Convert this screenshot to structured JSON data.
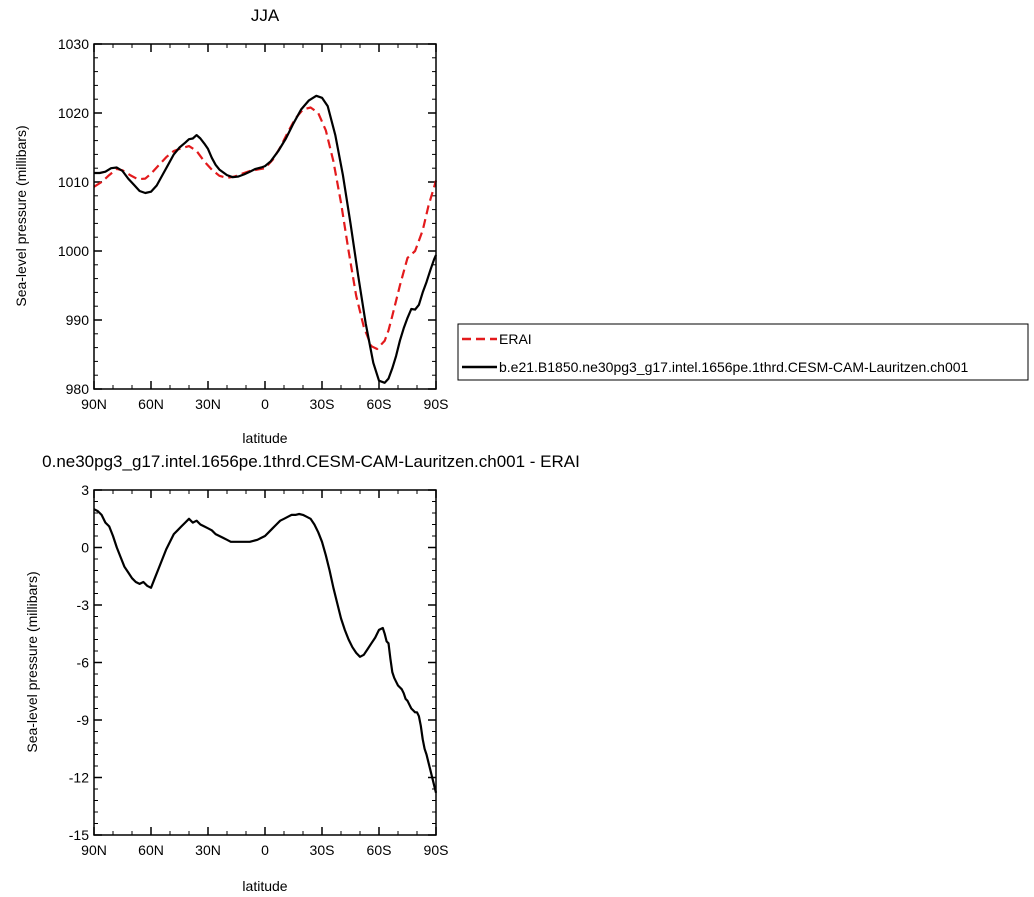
{
  "chart_data": [
    {
      "type": "line",
      "title": "JJA",
      "xlabel": "latitude",
      "ylabel": "Sea-level pressure (millibars)",
      "xlim": [
        90,
        -90
      ],
      "ylim": [
        980,
        1030
      ],
      "xtick_values": [
        90,
        60,
        30,
        0,
        -30,
        -60,
        -90
      ],
      "xtick_labels": [
        "90N",
        "60N",
        "30N",
        "0",
        "30S",
        "60S",
        "90S"
      ],
      "ytick_values": [
        980,
        990,
        1000,
        1010,
        1020,
        1030
      ],
      "ytick_labels": [
        "980",
        "990",
        "1000",
        "1010",
        "1020",
        "1030"
      ],
      "legend_position": "right",
      "series": [
        {
          "name": "ERAI",
          "color": "#e31a1c",
          "dash": "dashed",
          "x": [
            90,
            86,
            82,
            78,
            75,
            71,
            67,
            63,
            60,
            56,
            52,
            48,
            44,
            40,
            36,
            32,
            28,
            24,
            20,
            16,
            12,
            8,
            4,
            0,
            -4,
            -8,
            -12,
            -16,
            -20,
            -24,
            -28,
            -32,
            -36,
            -40,
            -44,
            -48,
            -52,
            -56,
            -59,
            -63,
            -65,
            -67,
            -71,
            -75,
            -79,
            -83,
            -86,
            -90
          ],
          "y": [
            1009.3,
            1010.0,
            1011.0,
            1011.9,
            1011.7,
            1011.0,
            1010.4,
            1010.5,
            1011.2,
            1012.4,
            1013.6,
            1014.5,
            1014.9,
            1015.2,
            1014.5,
            1013.0,
            1011.8,
            1010.9,
            1010.6,
            1010.8,
            1011.2,
            1011.6,
            1011.8,
            1012.0,
            1013.2,
            1015.0,
            1017.2,
            1019.2,
            1020.5,
            1020.8,
            1020.0,
            1017.5,
            1013.0,
            1007.0,
            1000.0,
            993.5,
            989.0,
            986.2,
            985.8,
            987.0,
            988.5,
            990.6,
            995.0,
            999.0,
            1000.0,
            1003.0,
            1006.5,
            1010.2
          ]
        },
        {
          "name": "b.e21.B1850.ne30pg3_g17.intel.1656pe.1thrd.CESM-CAM-Lauritzen.ch001",
          "color": "#000000",
          "dash": "solid",
          "x": [
            90,
            87,
            84,
            81,
            78,
            75,
            72,
            69,
            66,
            63,
            60,
            57,
            54,
            51,
            48,
            45,
            42,
            40,
            38,
            36,
            34,
            32,
            30,
            28,
            26,
            24,
            20,
            17,
            14,
            11,
            8,
            5,
            2,
            0,
            -3,
            -7,
            -11,
            -15,
            -19,
            -23,
            -27,
            -30,
            -33,
            -37,
            -41,
            -45,
            -49,
            -53,
            -57,
            -60,
            -63,
            -65,
            -67,
            -69,
            -71,
            -73,
            -75,
            -77,
            -79,
            -81,
            -83,
            -85,
            -87,
            -89,
            -90
          ],
          "y": [
            1011.3,
            1011.3,
            1011.5,
            1012.0,
            1012.1,
            1011.6,
            1010.5,
            1009.6,
            1008.7,
            1008.4,
            1008.6,
            1009.5,
            1011.0,
            1012.5,
            1014.0,
            1015.0,
            1015.7,
            1016.2,
            1016.3,
            1016.8,
            1016.3,
            1015.6,
            1014.8,
            1013.5,
            1012.5,
            1011.8,
            1011.0,
            1010.7,
            1010.8,
            1011.1,
            1011.5,
            1011.9,
            1012.1,
            1012.3,
            1013.0,
            1014.5,
            1016.3,
            1018.5,
            1020.5,
            1021.8,
            1022.5,
            1022.2,
            1021.0,
            1016.8,
            1011.0,
            1004.0,
            996.5,
            989.5,
            983.8,
            981.2,
            980.9,
            981.5,
            983.0,
            984.8,
            987.0,
            988.8,
            990.3,
            991.6,
            991.5,
            992.2,
            994.0,
            995.5,
            997.2,
            998.8,
            999.4
          ]
        }
      ]
    },
    {
      "type": "line",
      "title": "0.ne30pg3_g17.intel.1656pe.1thrd.CESM-CAM-Lauritzen.ch001 - ERAI",
      "xlabel": "latitude",
      "ylabel": "Sea-level pressure (millibars)",
      "xlim": [
        90,
        -90
      ],
      "ylim": [
        -15,
        3
      ],
      "xtick_values": [
        90,
        60,
        30,
        0,
        -30,
        -60,
        -90
      ],
      "xtick_labels": [
        "90N",
        "60N",
        "30N",
        "0",
        "30S",
        "60S",
        "90S"
      ],
      "ytick_values": [
        -15,
        -12,
        -9,
        -6,
        -3,
        0,
        3
      ],
      "ytick_labels": [
        "-15",
        "-12",
        "-9",
        "-6",
        "-3",
        "0",
        "3"
      ],
      "series": [
        {
          "color": "#000000",
          "dash": "solid",
          "x": [
            90,
            88,
            86,
            84,
            82,
            80,
            78,
            76,
            74,
            72,
            70,
            68,
            66,
            64,
            62,
            60,
            58,
            56,
            54,
            52,
            50,
            48,
            46,
            44,
            42,
            40,
            38,
            36,
            34,
            32,
            30,
            28,
            26,
            24,
            22,
            20,
            18,
            16,
            14,
            12,
            10,
            8,
            6,
            4,
            2,
            0,
            -2,
            -4,
            -6,
            -8,
            -10,
            -12,
            -14,
            -16,
            -18,
            -20,
            -22,
            -24,
            -26,
            -28,
            -30,
            -32,
            -34,
            -36,
            -38,
            -40,
            -42,
            -44,
            -46,
            -48,
            -50,
            -52,
            -54,
            -56,
            -58,
            -60,
            -62,
            -63,
            -64,
            -65,
            -66,
            -67,
            -68,
            -69,
            -70,
            -71,
            -72,
            -73,
            -74,
            -75,
            -76,
            -77,
            -78,
            -79,
            -80,
            -81,
            -82,
            -83,
            -84,
            -85,
            -86,
            -87,
            -88,
            -89,
            -90
          ],
          "y": [
            2.0,
            1.9,
            1.7,
            1.3,
            1.1,
            0.6,
            0.0,
            -0.5,
            -1.0,
            -1.3,
            -1.6,
            -1.8,
            -1.9,
            -1.8,
            -2.0,
            -2.1,
            -1.6,
            -1.1,
            -0.6,
            -0.1,
            0.3,
            0.7,
            0.9,
            1.1,
            1.3,
            1.5,
            1.3,
            1.4,
            1.2,
            1.1,
            1.0,
            0.9,
            0.7,
            0.6,
            0.5,
            0.4,
            0.3,
            0.3,
            0.3,
            0.3,
            0.3,
            0.3,
            0.35,
            0.4,
            0.5,
            0.6,
            0.8,
            1.0,
            1.2,
            1.4,
            1.5,
            1.6,
            1.7,
            1.7,
            1.75,
            1.7,
            1.6,
            1.5,
            1.2,
            0.8,
            0.3,
            -0.4,
            -1.2,
            -2.1,
            -2.9,
            -3.7,
            -4.3,
            -4.8,
            -5.2,
            -5.5,
            -5.7,
            -5.6,
            -5.3,
            -5.0,
            -4.7,
            -4.3,
            -4.2,
            -4.5,
            -4.9,
            -5.0,
            -5.8,
            -6.5,
            -6.8,
            -7.0,
            -7.2,
            -7.3,
            -7.4,
            -7.6,
            -7.9,
            -8.0,
            -8.2,
            -8.4,
            -8.5,
            -8.6,
            -8.6,
            -8.8,
            -9.3,
            -10.0,
            -10.5,
            -10.8,
            -11.2,
            -11.6,
            -12.0,
            -12.4,
            -12.8
          ]
        }
      ]
    }
  ]
}
